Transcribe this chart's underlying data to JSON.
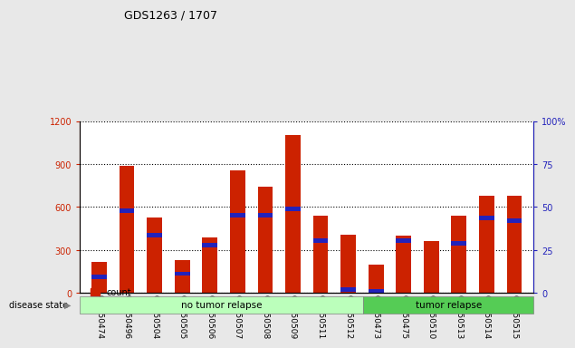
{
  "title": "GDS1263 / 1707",
  "categories": [
    "GSM50474",
    "GSM50496",
    "GSM50504",
    "GSM50505",
    "GSM50506",
    "GSM50507",
    "GSM50508",
    "GSM50509",
    "GSM50511",
    "GSM50512",
    "GSM50473",
    "GSM50475",
    "GSM50510",
    "GSM50513",
    "GSM50514",
    "GSM50515"
  ],
  "count": [
    220,
    890,
    530,
    230,
    390,
    855,
    740,
    1100,
    540,
    410,
    200,
    400,
    365,
    540,
    680,
    680
  ],
  "percentile_scaled": [
    130,
    590,
    420,
    150,
    350,
    560,
    560,
    600,
    380,
    40,
    20,
    380,
    0,
    360,
    540,
    520
  ],
  "no_tumor_count": 10,
  "disease_states": [
    "no tumor relapse",
    "tumor relapse"
  ],
  "no_tumor_color": "#bbffbb",
  "tumor_color": "#55cc55",
  "bar_color_count": "#cc2200",
  "bar_color_pct": "#2222bb",
  "ylim_left": [
    0,
    1200
  ],
  "ylim_right": [
    0,
    100
  ],
  "yticks_left": [
    0,
    300,
    600,
    900,
    1200
  ],
  "yticks_right": [
    0,
    25,
    50,
    75,
    100
  ],
  "background_color": "#e8e8e8",
  "plot_bg": "#ffffff"
}
